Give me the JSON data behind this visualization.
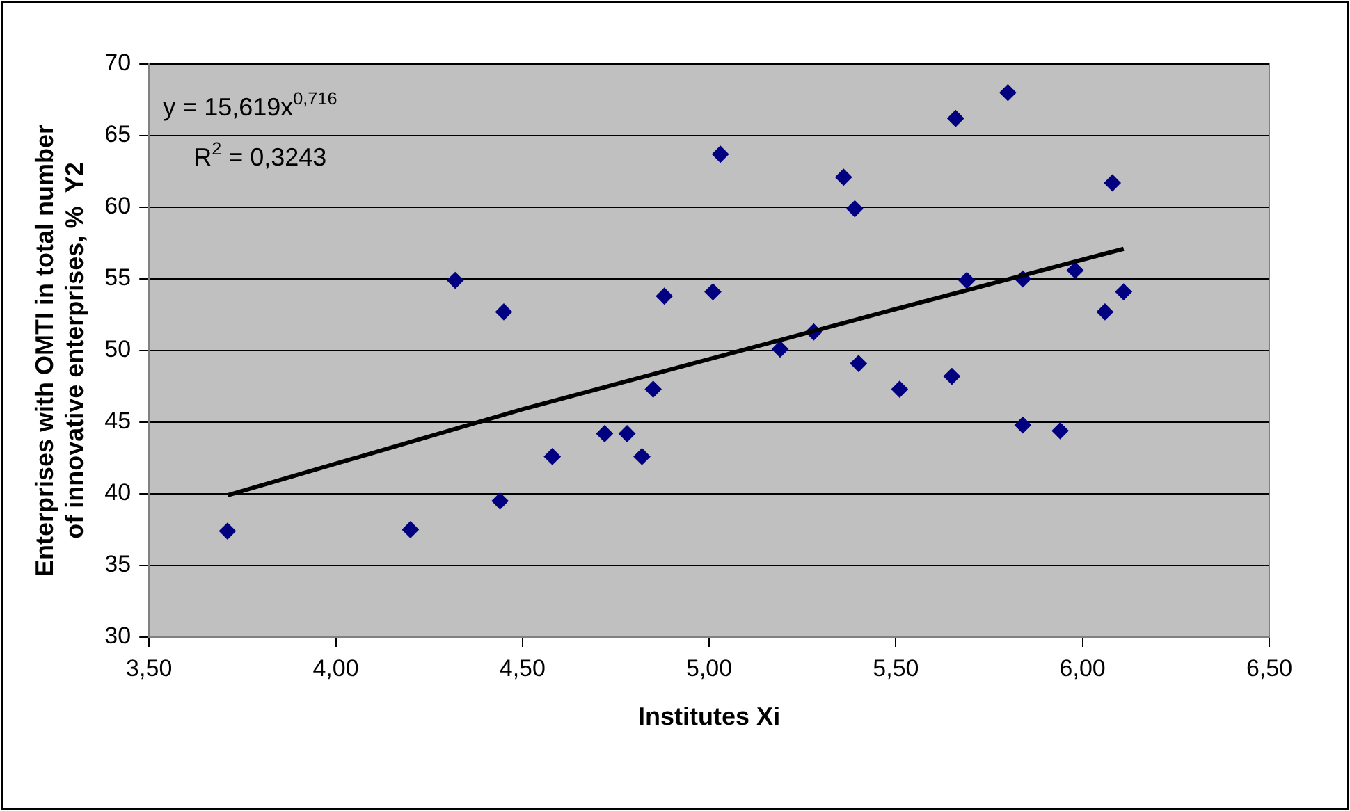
{
  "chart_data": {
    "type": "scatter",
    "xlabel": "Institutes Xi",
    "ylabel": "Enterprises with OMTI in total number of innovative enterprises, %  Y2",
    "xlim": [
      3.5,
      6.5
    ],
    "xticks": [
      {
        "value": 3.5,
        "label": "3,50"
      },
      {
        "value": 4,
        "label": "4,00"
      },
      {
        "value": 4.5,
        "label": "4,50"
      },
      {
        "value": 5,
        "label": "5,00"
      },
      {
        "value": 5.5,
        "label": "5,50"
      },
      {
        "value": 6,
        "label": "6,00"
      },
      {
        "value": 6.5,
        "label": "6,50"
      }
    ],
    "ylim": [
      30,
      70
    ],
    "yticks": [
      30,
      35,
      40,
      45,
      50,
      55,
      60,
      65,
      70
    ],
    "grid": "y",
    "legend": false,
    "marker": "diamond",
    "series": [
      {
        "color": "#000080",
        "x": [
          3.71,
          4.2,
          4.32,
          4.45,
          4.44,
          4.58,
          4.72,
          4.78,
          4.82,
          4.85,
          4.88,
          5.01,
          5.03,
          5.19,
          5.28,
          5.36,
          5.39,
          5.4,
          5.51,
          5.65,
          5.66,
          5.69,
          5.8,
          5.84,
          5.84,
          5.94,
          5.98,
          6.06,
          6.08,
          6.11
        ],
        "values": [
          37.4,
          37.5,
          54.9,
          52.7,
          39.5,
          42.6,
          44.2,
          44.2,
          42.6,
          47.3,
          53.8,
          54.1,
          63.7,
          50.1,
          51.3,
          62.1,
          59.9,
          49.1,
          47.3,
          48.2,
          66.2,
          54.9,
          68,
          55,
          44.8,
          44.4,
          55.6,
          52.7,
          61.7,
          54.1
        ]
      },
      {
        "type": "line",
        "color": "#000000",
        "marker": "none",
        "x": [
          3.71,
          4,
          4.5,
          5,
          5.5,
          6.11
        ],
        "values": [
          39.9,
          42.1,
          45.9,
          49.4,
          52.9,
          57.1
        ]
      }
    ],
    "annotations": [
      "y = 15,619x$^{0,716}$",
      "R$^{2}$ = 0,3243"
    ]
  }
}
